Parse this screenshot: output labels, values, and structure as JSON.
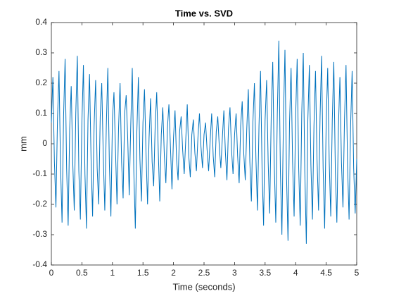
{
  "chart_data": {
    "type": "line",
    "title": "Time vs. SVD",
    "x_label": "Time (seconds)",
    "y_label": "mm",
    "x": [
      0,
      0.025,
      0.05,
      0.075,
      0.1,
      0.125,
      0.15,
      0.175,
      0.2,
      0.225,
      0.25,
      0.275,
      0.3,
      0.325,
      0.35,
      0.375,
      0.4,
      0.425,
      0.45,
      0.475,
      0.5,
      0.525,
      0.55,
      0.575,
      0.6,
      0.625,
      0.65,
      0.675,
      0.7,
      0.725,
      0.75,
      0.775,
      0.8,
      0.825,
      0.85,
      0.875,
      0.9,
      0.925,
      0.95,
      0.975,
      1,
      1.025,
      1.05,
      1.075,
      1.1,
      1.125,
      1.15,
      1.175,
      1.2,
      1.225,
      1.25,
      1.275,
      1.3,
      1.325,
      1.35,
      1.375,
      1.4,
      1.425,
      1.45,
      1.475,
      1.5,
      1.525,
      1.55,
      1.575,
      1.6,
      1.625,
      1.65,
      1.675,
      1.7,
      1.725,
      1.75,
      1.775,
      1.8,
      1.825,
      1.85,
      1.875,
      1.9,
      1.925,
      1.95,
      1.975,
      2,
      2.025,
      2.05,
      2.075,
      2.1,
      2.125,
      2.15,
      2.175,
      2.2,
      2.225,
      2.25,
      2.275,
      2.3,
      2.325,
      2.35,
      2.375,
      2.4,
      2.425,
      2.45,
      2.475,
      2.5,
      2.525,
      2.55,
      2.575,
      2.6,
      2.625,
      2.65,
      2.675,
      2.7,
      2.725,
      2.75,
      2.775,
      2.8,
      2.825,
      2.85,
      2.875,
      2.9,
      2.925,
      2.95,
      2.975,
      3,
      3.025,
      3.05,
      3.075,
      3.1,
      3.125,
      3.15,
      3.175,
      3.2,
      3.225,
      3.25,
      3.275,
      3.3,
      3.325,
      3.35,
      3.375,
      3.4,
      3.425,
      3.45,
      3.475,
      3.5,
      3.525,
      3.55,
      3.575,
      3.6,
      3.625,
      3.65,
      3.675,
      3.7,
      3.725,
      3.75,
      3.775,
      3.8,
      3.825,
      3.85,
      3.875,
      3.9,
      3.925,
      3.95,
      3.975,
      4,
      4.025,
      4.05,
      4.075,
      4.1,
      4.125,
      4.15,
      4.175,
      4.2,
      4.225,
      4.25,
      4.275,
      4.3,
      4.325,
      4.35,
      4.375,
      4.4,
      4.425,
      4.45,
      4.475,
      4.5,
      4.525,
      4.55,
      4.575,
      4.6,
      4.625,
      4.65,
      4.675,
      4.7,
      4.725,
      4.75,
      4.775,
      4.8,
      4.825,
      4.85,
      4.875,
      4.9,
      4.925,
      4.95,
      4.975,
      5
    ],
    "series": [
      {
        "name": "SVD",
        "color": "#0072bd",
        "values": [
          0.07,
          0.22,
          -0.06,
          -0.21,
          0.08,
          0.24,
          -0.07,
          -0.26,
          0.09,
          0.28,
          -0.08,
          -0.27,
          0.05,
          0.19,
          -0.06,
          -0.22,
          0.1,
          0.29,
          -0.09,
          -0.25,
          0.07,
          0.26,
          -0.1,
          -0.28,
          0.08,
          0.23,
          -0.05,
          -0.24,
          0.06,
          0.21,
          -0.08,
          -0.2,
          0.09,
          0.2,
          -0.04,
          -0.22,
          0.06,
          0.25,
          -0.07,
          -0.24,
          0.08,
          0.17,
          -0.02,
          -0.2,
          0.05,
          0.2,
          -0.06,
          -0.18,
          0.1,
          0.16,
          0.02,
          -0.17,
          0.06,
          0.25,
          -0.09,
          -0.28,
          0.04,
          0.22,
          -0.05,
          -0.19,
          0.07,
          0.18,
          -0.03,
          -0.2,
          0.02,
          0.15,
          -0.06,
          -0.14,
          0.06,
          0.17,
          -0.02,
          -0.19,
          0.03,
          0.12,
          -0.04,
          -0.13,
          0.05,
          0.13,
          -0.01,
          -0.15,
          0.02,
          0.11,
          -0.05,
          -0.12,
          0.04,
          0.09,
          -0.02,
          -0.1,
          0.01,
          0.13,
          -0.04,
          -0.11,
          0.03,
          0.08,
          -0.03,
          -0.09,
          0.02,
          0.1,
          -0.01,
          -0.08,
          0.03,
          0.07,
          -0.02,
          -0.09,
          0.01,
          0.1,
          -0.04,
          -0.11,
          0.04,
          0.09,
          -0.01,
          -0.08,
          0.02,
          0.11,
          -0.03,
          -0.12,
          0.05,
          0.12,
          -0.02,
          -0.1,
          0.03,
          0.1,
          -0.04,
          -0.13,
          0.06,
          0.14,
          -0.03,
          -0.12,
          0.05,
          0.18,
          -0.06,
          -0.19,
          0.07,
          0.2,
          -0.05,
          -0.22,
          0.06,
          0.24,
          -0.08,
          -0.27,
          0.08,
          0.21,
          -0.06,
          -0.23,
          0.09,
          0.27,
          -0.07,
          -0.26,
          0.1,
          0.34,
          -0.09,
          -0.3,
          0.08,
          0.31,
          -0.1,
          -0.32,
          0.07,
          0.25,
          -0.06,
          -0.24,
          0.09,
          0.28,
          -0.08,
          -0.27,
          0.1,
          0.3,
          -0.09,
          -0.33,
          0.08,
          0.26,
          -0.07,
          -0.25,
          0.06,
          0.24,
          -0.05,
          -0.22,
          0.09,
          0.29,
          -0.08,
          -0.28,
          0.07,
          0.25,
          -0.06,
          -0.24,
          0.08,
          0.27,
          -0.09,
          -0.26,
          0.05,
          0.22,
          -0.06,
          -0.21,
          0.08,
          0.26,
          -0.07,
          -0.25,
          0.06,
          0.24,
          -0.08,
          -0.23,
          -0.05
        ]
      }
    ],
    "xlim": [
      0,
      5
    ],
    "xticks": [
      0,
      0.5,
      1,
      1.5,
      2,
      2.5,
      3,
      3.5,
      4,
      4.5,
      5
    ],
    "ylim": [
      -0.4,
      0.4
    ],
    "yticks": [
      -0.4,
      -0.3,
      -0.2,
      -0.1,
      0,
      0.1,
      0.2,
      0.3,
      0.4
    ]
  }
}
